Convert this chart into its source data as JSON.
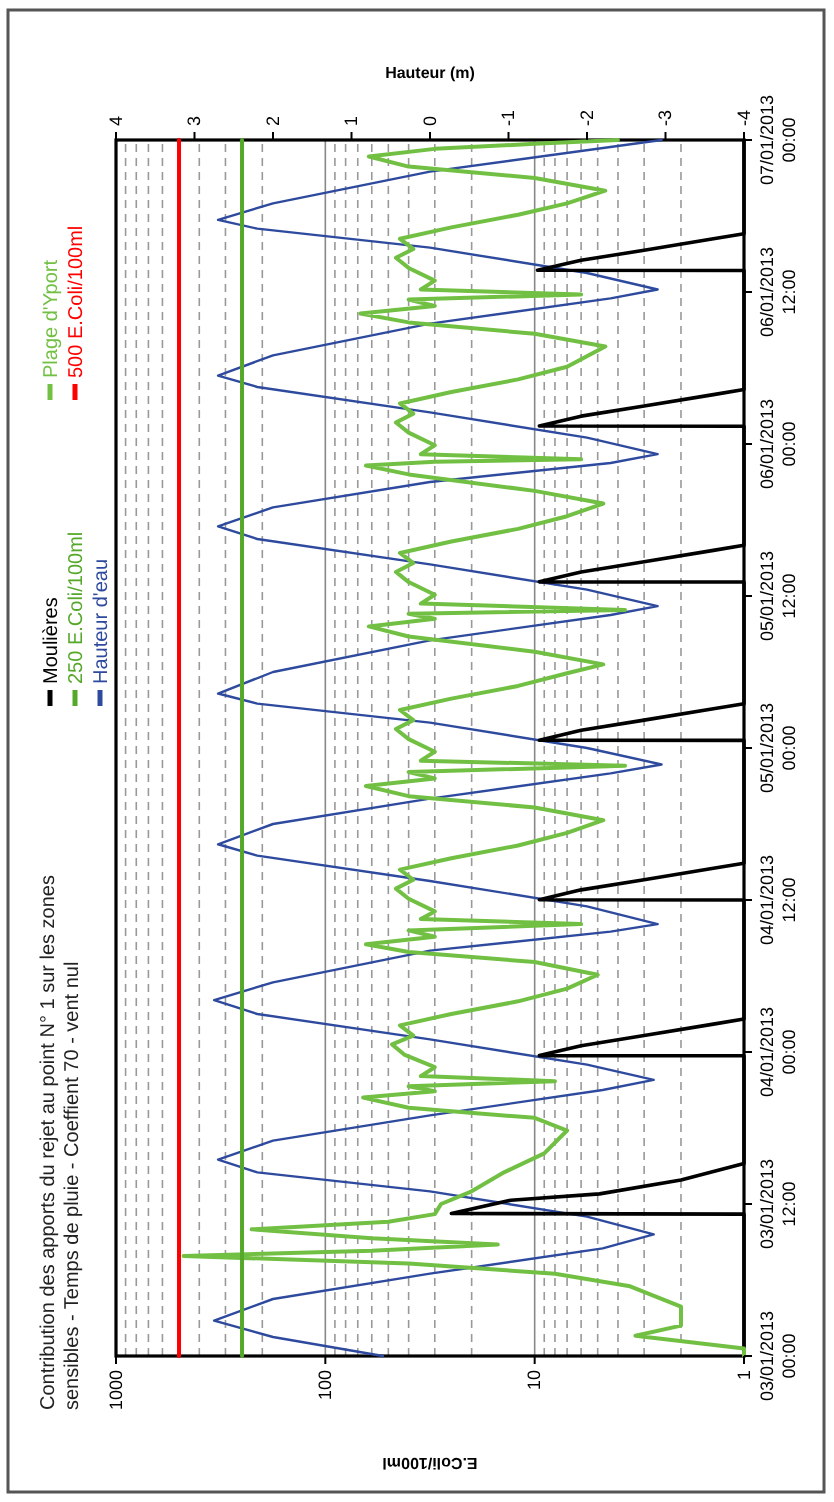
{
  "chart_data": {
    "type": "line",
    "title": "Contribution des apports du rejet au point N° 1 sur les zones sensibles - Temps de pluie - Coeffient 70 - vent nul",
    "xlabel": "E.Coli/100ml",
    "x2label": "Hauteur (m)",
    "orientation": "horizontal",
    "ylim": [
      "2013-01-03T00:00",
      "2013-01-07T00:00"
    ],
    "yticks": [
      {
        "value": "2013-01-03T00:00",
        "label": "03/01/2013 00:00"
      },
      {
        "value": "2013-01-03T12:00",
        "label": "03/01/2013 12:00"
      },
      {
        "value": "2013-01-04T00:00",
        "label": "04/01/2013 00:00"
      },
      {
        "value": "2013-01-04T12:00",
        "label": "04/01/2013 12:00"
      },
      {
        "value": "2013-01-05T00:00",
        "label": "05/01/2013 00:00"
      },
      {
        "value": "2013-01-05T12:00",
        "label": "05/01/2013 12:00"
      },
      {
        "value": "2013-01-06T00:00",
        "label": "06/01/2013 00:00"
      },
      {
        "value": "2013-01-06T12:00",
        "label": "06/01/2013 12:00"
      },
      {
        "value": "2013-01-07T00:00",
        "label": "07/01/2013 00:00"
      }
    ],
    "xlim": [
      1000,
      1
    ],
    "xticks": [
      1,
      {
        "value": 2,
        "label": null
      },
      {
        "value": 3,
        "label": null
      },
      {
        "value": 4,
        "label": null
      },
      {
        "value": 5,
        "label": null
      },
      {
        "value": 6,
        "label": null
      },
      {
        "value": 7,
        "label": null
      },
      {
        "value": 8,
        "label": null
      },
      {
        "value": 9,
        "label": null
      },
      10,
      {
        "value": 20,
        "label": null
      },
      {
        "value": 30,
        "label": null
      },
      {
        "value": 40,
        "label": null
      },
      {
        "value": 50,
        "label": null
      },
      {
        "value": 60,
        "label": null
      },
      {
        "value": 70,
        "label": null
      },
      {
        "value": 80,
        "label": null
      },
      {
        "value": 90,
        "label": null
      },
      100,
      {
        "value": 200,
        "label": null
      },
      {
        "value": 300,
        "label": null
      },
      {
        "value": 400,
        "label": null
      },
      {
        "value": 500,
        "label": null
      },
      {
        "value": 600,
        "label": null
      },
      {
        "value": 700,
        "label": null
      },
      {
        "value": 800,
        "label": null
      },
      {
        "value": 900,
        "label": null
      },
      1000
    ],
    "x2lim": [
      4,
      -4
    ],
    "x2ticks": [
      -4,
      -3,
      -2,
      -1,
      0,
      1,
      2,
      3,
      4
    ],
    "log": "x",
    "grid": "x",
    "legend": "left",
    "series": [
      {
        "name": "Moulières",
        "color": "#000000",
        "x": [
          "2013-01-03T00:00",
          "2013-01-03T11:12",
          "2013-01-03T11:15",
          "2013-01-03T12:18",
          "2013-01-03T12:48",
          "2013-01-03T13:54",
          "2013-01-03T15:12",
          "2013-01-03T23:42",
          "2013-01-03T23:43",
          "2013-01-04T00:30",
          "2013-01-04T01:18",
          "2013-01-04T02:12",
          "2013-01-04T02:36",
          "2013-01-04T12:00",
          "2013-01-04T12:01",
          "2013-01-04T12:48",
          "2013-01-04T13:36",
          "2013-01-04T14:30",
          "2013-01-04T14:54",
          "2013-01-05T00:36",
          "2013-01-05T00:37",
          "2013-01-05T01:24",
          "2013-01-05T02:12",
          "2013-01-05T03:06",
          "2013-01-05T03:30",
          "2013-01-05T13:06",
          "2013-01-05T13:07",
          "2013-01-05T13:54",
          "2013-01-05T14:42",
          "2013-01-05T15:36",
          "2013-01-05T16:00",
          "2013-01-06T01:24",
          "2013-01-06T01:25",
          "2013-01-06T02:12",
          "2013-01-06T03:00",
          "2013-01-06T03:54",
          "2013-01-06T04:18",
          "2013-01-06T13:42",
          "2013-01-06T13:43",
          "2013-01-06T14:30",
          "2013-01-06T15:18",
          "2013-01-06T16:12",
          "2013-01-06T16:36",
          "2013-01-07T00:00"
        ],
        "values": [
          1,
          1,
          25,
          13,
          4.9,
          2,
          1,
          1,
          9.5,
          6,
          3,
          1.4,
          1,
          1,
          9.5,
          6,
          3,
          1.4,
          1,
          1,
          9.5,
          6,
          3,
          1.4,
          1,
          1,
          9.5,
          6,
          3,
          1.4,
          1,
          1,
          9.5,
          6,
          3,
          1.4,
          1,
          1,
          9.7,
          6,
          3,
          1.4,
          1,
          1
        ]
      },
      {
        "name": "Plage d'Yport",
        "color": "#72c043",
        "x": [
          "2013-01-03T00:00",
          "2013-01-03T00:36",
          "2013-01-03T01:36",
          "2013-01-03T02:24",
          "2013-01-03T03:54",
          "2013-01-03T05:30",
          "2013-01-03T06:30",
          "2013-01-03T07:18",
          "2013-01-03T07:54",
          "2013-01-03T08:18",
          "2013-01-03T08:48",
          "2013-01-03T09:18",
          "2013-01-03T10:00",
          "2013-01-03T10:36",
          "2013-01-03T11:12",
          "2013-01-03T12:00",
          "2013-01-03T13:00",
          "2013-01-03T14:30",
          "2013-01-03T16:00",
          "2013-01-03T17:48",
          "2013-01-03T18:48",
          "2013-01-03T19:36",
          "2013-01-03T20:24",
          "2013-01-03T20:54",
          "2013-01-03T21:18",
          "2013-01-03T21:42",
          "2013-01-03T22:06",
          "2013-01-03T22:48",
          "2013-01-03T23:48",
          "2013-01-04T00:36",
          "2013-01-04T01:18",
          "2013-01-04T02:06",
          "2013-01-04T03:00",
          "2013-01-04T04:00",
          "2013-01-04T05:00",
          "2013-01-04T06:06",
          "2013-01-04T07:06",
          "2013-01-04T07:54",
          "2013-01-04T08:30",
          "2013-01-04T09:06",
          "2013-01-04T09:36",
          "2013-01-04T10:06",
          "2013-01-04T10:30",
          "2013-01-04T11:06",
          "2013-01-04T12:06",
          "2013-01-04T12:54",
          "2013-01-04T13:36",
          "2013-01-04T14:24",
          "2013-01-04T15:18",
          "2013-01-04T16:18",
          "2013-01-04T17:18",
          "2013-01-04T18:18",
          "2013-01-04T19:18",
          "2013-01-04T20:12",
          "2013-01-04T21:00",
          "2013-01-04T21:36",
          "2013-01-04T22:06",
          "2013-01-04T22:36",
          "2013-01-04T23:00",
          "2013-01-04T23:42",
          "2013-01-05T00:42",
          "2013-01-05T01:30",
          "2013-01-05T02:12",
          "2013-01-05T03:00",
          "2013-01-05T03:54",
          "2013-01-05T04:54",
          "2013-01-05T05:54",
          "2013-01-05T06:36",
          "2013-01-05T07:36",
          "2013-01-05T08:48",
          "2013-01-05T09:36",
          "2013-01-05T10:12",
          "2013-01-05T10:36",
          "2013-01-05T10:54",
          "2013-01-05T11:24",
          "2013-01-05T12:06",
          "2013-01-05T13:06",
          "2013-01-05T13:54",
          "2013-01-05T14:36",
          "2013-01-05T15:24",
          "2013-01-05T16:18",
          "2013-01-05T17:18",
          "2013-01-05T18:18",
          "2013-01-05T19:18",
          "2013-01-05T20:18",
          "2013-01-05T21:36",
          "2013-01-05T22:18",
          "2013-01-05T22:36",
          "2013-01-05T22:48",
          "2013-01-05T23:12",
          "2013-01-05T23:54",
          "2013-01-06T00:54",
          "2013-01-06T01:42",
          "2013-01-06T02:24",
          "2013-01-06T03:12",
          "2013-01-06T04:06",
          "2013-01-06T05:06",
          "2013-01-06T06:06",
          "2013-01-06T07:42",
          "2013-01-06T08:42",
          "2013-01-06T09:36",
          "2013-01-06T10:18",
          "2013-01-06T10:54",
          "2013-01-06T11:24",
          "2013-01-06T11:48",
          "2013-01-06T12:12",
          "2013-01-06T12:54",
          "2013-01-06T13:54",
          "2013-01-06T14:42",
          "2013-01-06T15:24",
          "2013-01-06T16:12",
          "2013-01-06T17:06",
          "2013-01-06T18:06",
          "2013-01-06T19:00",
          "2013-01-06T20:00",
          "2013-01-06T21:00",
          "2013-01-06T21:54",
          "2013-01-06T22:42",
          "2013-01-06T23:18",
          "2013-01-06T23:42",
          "2013-01-07T00:00"
        ],
        "values": [
          1,
          1,
          3.3,
          2,
          2,
          3.5,
          8,
          40,
          475,
          60,
          15,
          60,
          225,
          50,
          30,
          28,
          20,
          14,
          9,
          7,
          10,
          40,
          66,
          30,
          40,
          8,
          35,
          30,
          42,
          48,
          38,
          44,
          25,
          12,
          7,
          5,
          10,
          40,
          64,
          30,
          40,
          6,
          35,
          30,
          40,
          46,
          38,
          44,
          25,
          12,
          7,
          4.7,
          10,
          40,
          64,
          30,
          40,
          3.7,
          35,
          30,
          40,
          46,
          38,
          44,
          25,
          12,
          7,
          4.7,
          10,
          40,
          62,
          30,
          40,
          3.7,
          35,
          30,
          40,
          46,
          38,
          44,
          25,
          12,
          7,
          4.7,
          10,
          40,
          64,
          30,
          6,
          35,
          30,
          40,
          46,
          38,
          44,
          25,
          12,
          7,
          4.6,
          10,
          40,
          68,
          30,
          40,
          6,
          35,
          30,
          40,
          46,
          38,
          44,
          25,
          12,
          7,
          4.6,
          10,
          40,
          62,
          30,
          10,
          4
        ]
      },
      {
        "name": "250 E.Coli/100ml",
        "color": "#55a82a",
        "x": [
          "2013-01-03T00:00",
          "2013-01-07T00:00"
        ],
        "values": [
          250,
          250
        ]
      },
      {
        "name": "500 E.Coli/100ml",
        "color": "#ff0000",
        "x": [
          "2013-01-03T00:00",
          "2013-01-07T00:00"
        ],
        "values": [
          500,
          500
        ]
      },
      {
        "name": "Hauteur d'eau",
        "color": "#2e4a9e",
        "axis": "x2",
        "x": [
          "2013-01-03T00:00",
          "2013-01-03T01:30",
          "2013-01-03T02:48",
          "2013-01-03T04:30",
          "2013-01-03T06:30",
          "2013-01-03T08:30",
          "2013-01-03T09:36",
          "2013-01-03T11:00",
          "2013-01-03T13:00",
          "2013-01-03T14:30",
          "2013-01-03T15:30",
          "2013-01-03T17:00",
          "2013-01-03T19:00",
          "2013-01-03T21:00",
          "2013-01-03T21:48",
          "2013-01-03T23:00",
          "2013-01-04T01:00",
          "2013-01-04T03:00",
          "2013-01-04T04:06",
          "2013-01-04T05:30",
          "2013-01-04T08:00",
          "2013-01-04T09:30",
          "2013-01-04T10:06",
          "2013-01-04T11:30",
          "2013-01-04T13:30",
          "2013-01-04T15:30",
          "2013-01-04T16:24",
          "2013-01-04T18:00",
          "2013-01-04T20:00",
          "2013-01-04T22:00",
          "2013-01-04T22:42",
          "2013-01-05T00:00",
          "2013-01-05T02:00",
          "2013-01-05T03:30",
          "2013-01-05T04:18",
          "2013-01-05T06:00",
          "2013-01-05T08:30",
          "2013-01-05T10:30",
          "2013-01-05T11:12",
          "2013-01-05T12:30",
          "2013-01-05T14:30",
          "2013-01-05T16:30",
          "2013-01-05T17:30",
          "2013-01-05T19:00",
          "2013-01-05T21:00",
          "2013-01-05T22:30",
          "2013-01-05T23:12",
          "2013-01-06T00:30",
          "2013-01-06T02:30",
          "2013-01-06T04:30",
          "2013-01-06T05:24",
          "2013-01-06T07:00",
          "2013-01-06T09:30",
          "2013-01-06T11:30",
          "2013-01-06T12:12",
          "2013-01-06T13:30",
          "2013-01-06T15:30",
          "2013-01-06T17:00",
          "2013-01-06T17:42",
          "2013-01-06T19:00",
          "2013-01-06T21:30",
          "2013-01-07T00:00"
        ],
        "values": [
          0.6,
          2,
          2.75,
          2,
          0,
          -2.2,
          -2.85,
          -2,
          0,
          2.2,
          2.7,
          2,
          0,
          -2.2,
          -2.85,
          -2,
          0,
          2.2,
          2.75,
          2,
          0,
          -2.3,
          -2.9,
          -2,
          0,
          2.2,
          2.7,
          2,
          0,
          -2.3,
          -2.95,
          -2,
          0,
          2.2,
          2.7,
          2,
          0,
          -2.3,
          -2.9,
          -2,
          0,
          2.2,
          2.7,
          2,
          0,
          -2.3,
          -2.9,
          -2,
          0,
          2.2,
          2.7,
          2,
          0,
          -2.3,
          -2.9,
          -2,
          0,
          2.2,
          2.7,
          2,
          0,
          -2.95
        ]
      }
    ]
  }
}
